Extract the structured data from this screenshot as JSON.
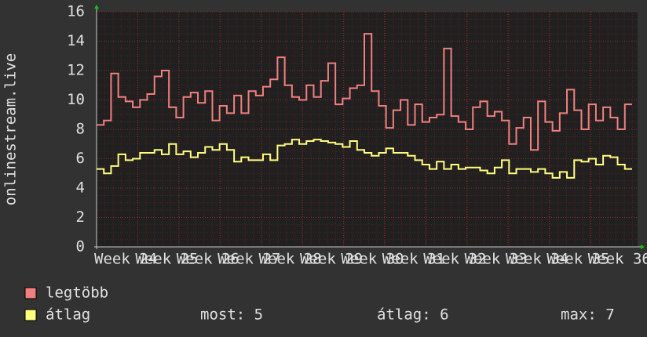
{
  "chart_data": {
    "type": "line",
    "step": true,
    "y_label": "onlinestream.live",
    "ylim": [
      0,
      16
    ],
    "yticks": [
      0,
      2,
      4,
      6,
      8,
      10,
      12,
      14,
      16
    ],
    "grid": true,
    "xtick_labels": [
      "Week 24",
      "Week 25",
      "Week 26",
      "Week 27",
      "Week 28",
      "Week 29",
      "Week 30",
      "Week 31",
      "Week 32",
      "Week 33",
      "Week 34",
      "Week 35",
      "Week 36"
    ],
    "series": [
      {
        "name": "legtöbb",
        "color": "#f08080",
        "values": [
          8.3,
          8.6,
          11.8,
          10.2,
          9.9,
          9.5,
          10.0,
          10.4,
          11.6,
          12.0,
          9.5,
          8.8,
          10.2,
          10.5,
          9.8,
          10.6,
          8.6,
          9.6,
          9.1,
          10.3,
          9.1,
          10.6,
          10.3,
          10.9,
          11.4,
          12.9,
          11.0,
          10.2,
          10.0,
          11.0,
          10.2,
          11.3,
          12.5,
          9.7,
          10.1,
          10.8,
          11.0,
          14.5,
          10.6,
          9.6,
          8.1,
          9.3,
          10.0,
          8.3,
          9.7,
          8.5,
          8.8,
          9.0,
          13.5,
          8.9,
          8.5,
          8.0,
          9.5,
          9.9,
          8.9,
          9.2,
          8.6,
          7.0,
          8.1,
          8.8,
          6.6,
          9.9,
          8.5,
          7.9,
          9.1,
          10.7,
          9.3,
          8.0,
          9.7,
          8.6,
          9.5,
          8.8,
          8.0,
          9.7
        ]
      },
      {
        "name": "átlag",
        "color": "#ffff80",
        "values": [
          5.3,
          5.0,
          5.5,
          6.3,
          5.9,
          6.0,
          6.4,
          6.4,
          6.6,
          6.3,
          7.0,
          6.3,
          6.5,
          6.1,
          6.4,
          6.8,
          6.6,
          7.0,
          6.6,
          5.8,
          6.1,
          5.9,
          5.9,
          6.3,
          5.9,
          6.9,
          7.0,
          7.3,
          7.0,
          7.2,
          7.3,
          7.2,
          7.1,
          7.0,
          6.8,
          7.2,
          6.6,
          6.4,
          6.2,
          6.4,
          6.7,
          6.4,
          6.4,
          6.2,
          5.9,
          5.6,
          5.3,
          5.8,
          5.3,
          5.6,
          5.3,
          5.4,
          5.4,
          5.2,
          5.0,
          5.4,
          5.9,
          5.0,
          5.3,
          5.3,
          5.1,
          5.3,
          5.0,
          4.7,
          5.1,
          4.7,
          5.9,
          5.8,
          6.0,
          5.6,
          6.2,
          6.1,
          5.6,
          5.3
        ]
      }
    ],
    "stats": [
      "most: 5",
      "átlag: 6",
      "max: 7"
    ]
  }
}
